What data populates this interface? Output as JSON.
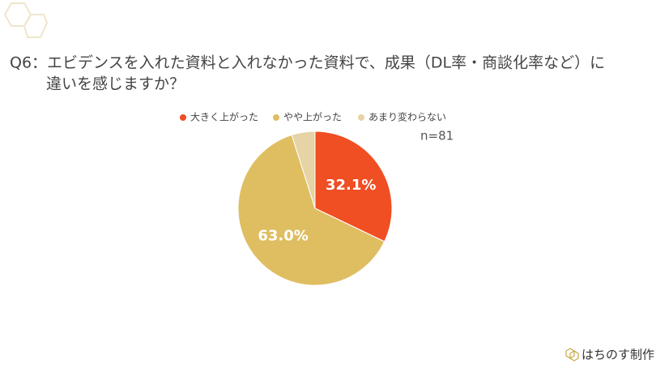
{
  "title": [
    "Q6：エビデンスを入れた資料と入れなかった資料で、成果（DL率・商談化率など）に",
    "違いを感じますか？"
  ],
  "chart_data": {
    "type": "pie",
    "categories": [
      "大きく上がった",
      "やや上がった",
      "あまり変わらない"
    ],
    "values": [
      32.1,
      63.0,
      4.9
    ],
    "value_labels": [
      "32.1%",
      "63.0%",
      null
    ],
    "colors": [
      "#f04e23",
      "#dfbe62",
      "#e6d4a6"
    ],
    "annotation": "n=81"
  },
  "footer": "はちのす制作"
}
